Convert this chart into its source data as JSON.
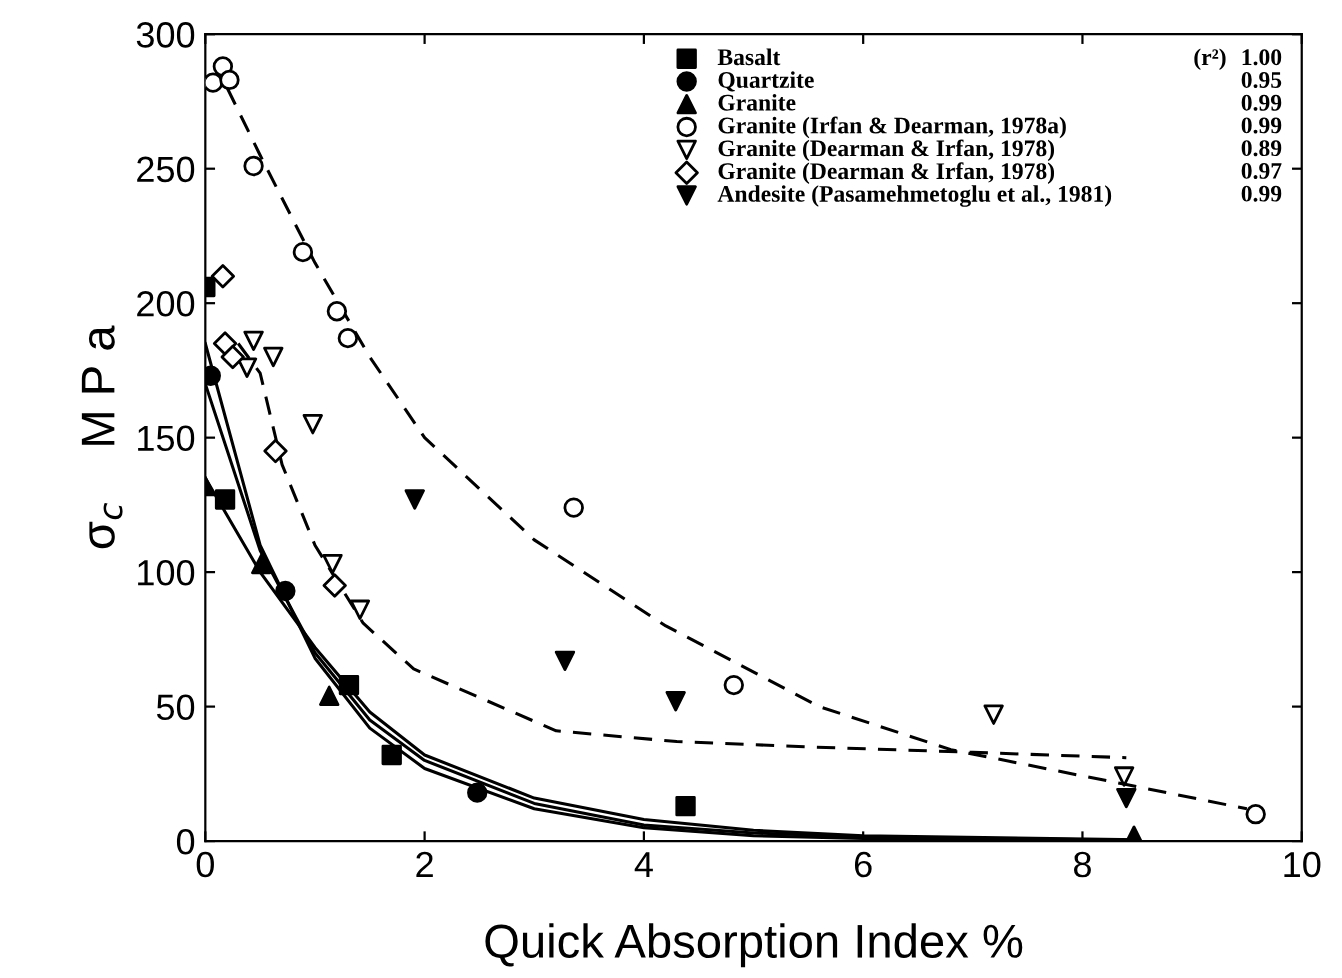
{
  "chart_data": {
    "type": "scatter",
    "xlabel": "Quick Absorption Index %",
    "ylabel": "σ$_{c}$    M P a",
    "xlim": [
      0,
      10
    ],
    "ylim": [
      0,
      300
    ],
    "xticks": [
      0,
      2,
      4,
      6,
      8,
      10
    ],
    "yticks": [
      0,
      50,
      100,
      150,
      200,
      250,
      300
    ],
    "grid": false,
    "legend": "top right",
    "legend_title": "(r²)",
    "annotations": [
      "1.00",
      "0.95",
      "0.99",
      "0.99",
      "0.89",
      "0.97",
      "0.99"
    ],
    "series": [
      {
        "name": "Basalt",
        "color": "#000000",
        "marker": "square",
        "x": [
          0,
          0.18,
          1.31,
          1.7,
          4.38
        ],
        "values": [
          206,
          127,
          58,
          32,
          13
        ]
      },
      {
        "name": "Quartzite",
        "color": "#000000",
        "marker": "circle",
        "x": [
          0.05,
          0.73,
          2.48
        ],
        "values": [
          173,
          93,
          18
        ]
      },
      {
        "name": "Granite",
        "color": "#000000",
        "marker": "triangle",
        "x": [
          0,
          0.51,
          1.13,
          8.47
        ],
        "values": [
          132,
          103,
          54,
          2
        ]
      },
      {
        "name": "Granite (Irfan & Dearman, 1978a)",
        "color": "#000000",
        "marker": "circle_open",
        "x": [
          0.07,
          0.16,
          0.22,
          0.44,
          0.89,
          1.2,
          1.3,
          3.36,
          4.82,
          9.58
        ],
        "values": [
          282,
          288,
          283,
          251,
          219,
          197,
          187,
          124,
          58,
          10
        ]
      },
      {
        "name": "Granite (Dearman & Irfan, 1978)",
        "color": "#000000",
        "marker": "triangle_down_open",
        "x": [
          0.38,
          0.44,
          0.62,
          0.98,
          1.16,
          1.41,
          7.19,
          8.38
        ],
        "values": [
          176,
          186,
          180,
          155,
          103,
          86,
          47,
          24
        ]
      },
      {
        "name": "Granite (Dearman & Irfan, 1978)",
        "color": "#000000",
        "marker": "diamond_open",
        "x": [
          0.16,
          0.18,
          0.25,
          0.64,
          1.18
        ],
        "values": [
          210,
          185,
          180,
          145,
          95
        ]
      },
      {
        "name": "Andesite (Pasamehmetoglu et al., 1981)",
        "color": "#000000",
        "marker": "triangle_down",
        "x": [
          1.91,
          3.28,
          4.29,
          8.4
        ],
        "values": [
          127,
          67,
          52,
          16
        ]
      },
      {
        "type": "line",
        "color": "#000000",
        "line_style": "dashed",
        "marker": "none",
        "x": [
          0.2,
          0.5,
          1,
          1.5,
          2,
          3,
          4.2,
          5.6,
          6.8,
          8.4,
          9.5
        ],
        "values": [
          280,
          255,
          215,
          180,
          150,
          112,
          80,
          50,
          34,
          21,
          12
        ]
      },
      {
        "type": "line",
        "color": "#000000",
        "line_style": "dashed",
        "marker": "none",
        "x": [
          0.3,
          0.5,
          0.7,
          1,
          1.44,
          1.9,
          3.2,
          4.3,
          5.5,
          7,
          8.4
        ],
        "values": [
          185,
          174,
          140,
          110,
          81,
          64,
          41,
          37,
          35,
          33,
          31
        ]
      },
      {
        "type": "line",
        "color": "#000000",
        "line_style": "solid",
        "marker": "none",
        "x": [
          0,
          0.5,
          1,
          1.5,
          2,
          3,
          4,
          5,
          6,
          8.5
        ],
        "values": [
          185,
          110,
          68,
          42,
          27,
          12,
          5,
          2,
          1,
          0
        ]
      },
      {
        "type": "line",
        "color": "#000000",
        "line_style": "solid",
        "marker": "none",
        "x": [
          0,
          0.5,
          1,
          1.5,
          2,
          3,
          4,
          5,
          6,
          8.5
        ],
        "values": [
          170,
          108,
          70,
          45,
          30,
          14,
          6,
          3,
          1.5,
          0.3
        ]
      },
      {
        "type": "line",
        "color": "#000000",
        "line_style": "solid",
        "marker": "none",
        "x": [
          0,
          0.5,
          1,
          1.5,
          2,
          3,
          4,
          5,
          6,
          8.5
        ],
        "values": [
          135,
          100,
          72,
          48,
          32,
          16,
          8,
          4,
          2,
          0.5
        ]
      }
    ]
  }
}
